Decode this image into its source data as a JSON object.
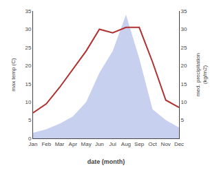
{
  "chart_data": {
    "type": "line",
    "categories": [
      "Jan",
      "Feb",
      "Mar",
      "Apr",
      "May",
      "Jun",
      "Jul",
      "Aug",
      "Sep",
      "Oct",
      "Nov",
      "Dec"
    ],
    "xlabel": "date (month)",
    "ylabel": "max temp (C)",
    "y2label": "med. precipitation\n(kg/m2)",
    "ylim": [
      0,
      35
    ],
    "yticks": [
      0,
      5,
      10,
      15,
      20,
      25,
      30,
      35
    ],
    "y2lim": [
      0,
      35
    ],
    "y2ticks": [
      5,
      10,
      15,
      20,
      25,
      30,
      35
    ],
    "grid": false,
    "series": [
      {
        "type": "area",
        "color": "#c8d0f0",
        "axis": "y2",
        "values": [
          1.5,
          2.5,
          4,
          6,
          10,
          18,
          24,
          34,
          22,
          8,
          5,
          3
        ]
      },
      {
        "type": "line",
        "color": "#b03030",
        "values": [
          7,
          9.5,
          14,
          19,
          24,
          30,
          29,
          30.5,
          30.5,
          21,
          10.5,
          8.5
        ]
      }
    ]
  }
}
